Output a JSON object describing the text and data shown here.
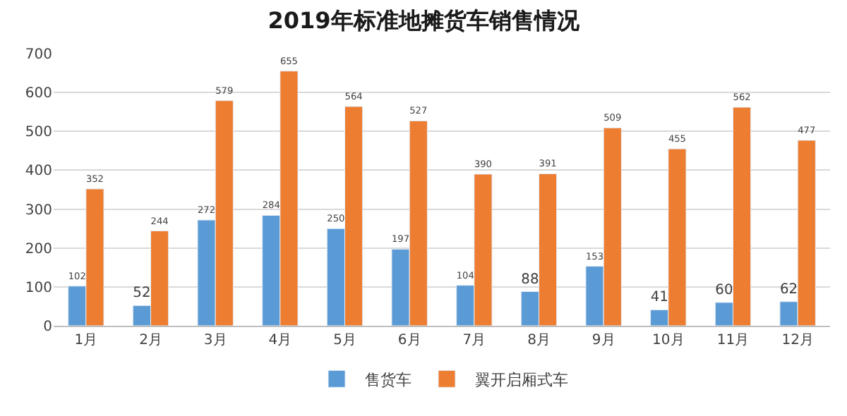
{
  "chart_data": {
    "type": "bar",
    "title": "2019年标准地摊货车销售情况",
    "categories": [
      "1月",
      "2月",
      "3月",
      "4月",
      "5月",
      "6月",
      "7月",
      "8月",
      "9月",
      "10月",
      "11月",
      "12月"
    ],
    "series": [
      {
        "name": "售货车",
        "color": "#5b9bd5",
        "values": [
          102,
          52,
          272,
          284,
          250,
          197,
          104,
          88,
          153,
          41,
          60,
          62
        ]
      },
      {
        "name": "翼开启厢式车",
        "color": "#ed7d31",
        "values": [
          352,
          244,
          579,
          655,
          564,
          527,
          390,
          391,
          509,
          455,
          562,
          477
        ]
      }
    ],
    "ylim": [
      0,
      700
    ],
    "yticks": [
      0,
      100,
      200,
      300,
      400,
      500,
      600,
      700
    ],
    "grid": "y",
    "legend": "bottom",
    "data_labels": true
  }
}
